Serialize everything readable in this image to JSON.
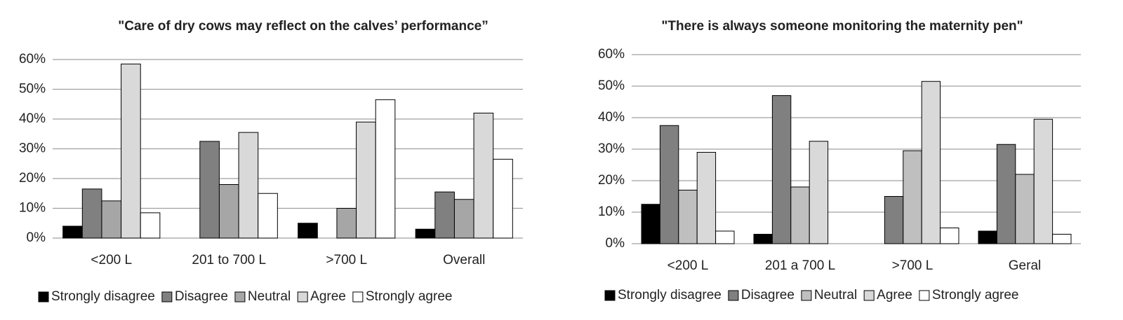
{
  "chart_data": [
    {
      "type": "bar",
      "title": "\"Care of dry cows may reflect on the calves’ performance”",
      "categories": [
        "<200 L",
        "201 to 700 L",
        ">700 L",
        "Overall"
      ],
      "series": [
        {
          "name": "Strongly disagree",
          "color": "#000000",
          "values": [
            4,
            0,
            5,
            3
          ]
        },
        {
          "name": "Disagree",
          "color": "#808080",
          "values": [
            16.5,
            32.5,
            0,
            15.5
          ]
        },
        {
          "name": "Neutral",
          "color": "#a6a6a6",
          "values": [
            12.5,
            18,
            10,
            13
          ]
        },
        {
          "name": "Agree",
          "color": "#d9d9d9",
          "values": [
            58.5,
            35.5,
            39,
            42
          ]
        },
        {
          "name": "Strongly agree",
          "color": "#ffffff",
          "values": [
            8.5,
            15,
            46.5,
            26.5
          ]
        }
      ],
      "ylim": [
        0,
        60
      ],
      "yticks": [
        {
          "value": 0,
          "label": "0%"
        },
        {
          "value": 10,
          "label": "10%"
        },
        {
          "value": 20,
          "label": "20%"
        },
        {
          "value": 30,
          "label": "30%"
        },
        {
          "value": 40,
          "label": "40%"
        },
        {
          "value": 50,
          "label": "50%"
        },
        {
          "value": 60,
          "label": "60%"
        }
      ],
      "grid": true,
      "legend": "bottom"
    },
    {
      "type": "bar",
      "title": "\"There is always someone monitoring the maternity pen\"",
      "categories": [
        "<200 L",
        "201 a 700 L",
        ">700 L",
        "Geral"
      ],
      "series": [
        {
          "name": "Strongly disagree",
          "color": "#000000",
          "values": [
            12.5,
            3,
            0,
            4
          ]
        },
        {
          "name": "Disagree",
          "color": "#808080",
          "values": [
            37.5,
            47,
            15,
            31.5
          ]
        },
        {
          "name": "Neutral",
          "color": "#bfbfbf",
          "values": [
            17,
            18,
            29.5,
            22
          ]
        },
        {
          "name": "Agree",
          "color": "#d9d9d9",
          "values": [
            29,
            32.5,
            51.5,
            39.5
          ]
        },
        {
          "name": "Strongly agree",
          "color": "#ffffff",
          "values": [
            4,
            0,
            5,
            3
          ]
        }
      ],
      "ylim": [
        0,
        60
      ],
      "yticks": [
        {
          "value": 0,
          "label": "0%"
        },
        {
          "value": 10,
          "label": "10%"
        },
        {
          "value": 20,
          "label": "20%"
        },
        {
          "value": 30,
          "label": "30%"
        },
        {
          "value": 40,
          "label": "40%"
        },
        {
          "value": 50,
          "label": "50%"
        },
        {
          "value": 60,
          "label": "60%"
        }
      ],
      "grid": true,
      "legend": "bottom"
    }
  ]
}
